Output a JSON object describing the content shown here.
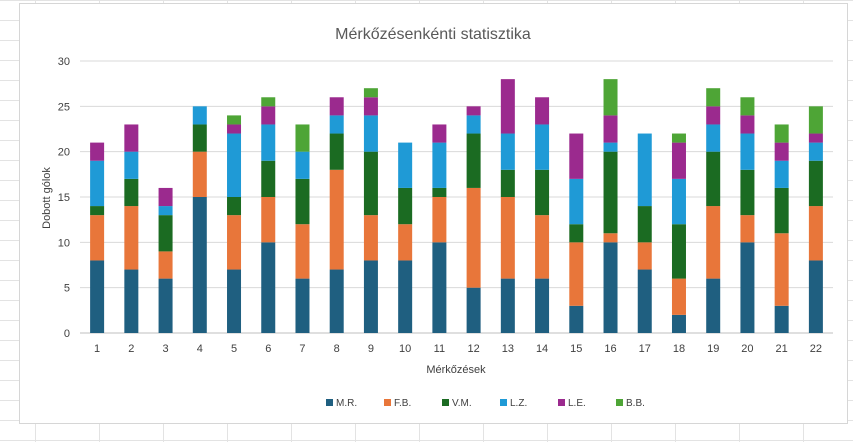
{
  "chart_data": {
    "type": "bar",
    "stacked": true,
    "title": "Mérkőzésenkénti statisztika",
    "xlabel": "Mérkőzések",
    "ylabel": "Dobott gólok",
    "ylim": [
      0,
      30
    ],
    "yticks": [
      0,
      5,
      10,
      15,
      20,
      25,
      30
    ],
    "grid": true,
    "legend_position": "bottom",
    "categories": [
      "1",
      "2",
      "3",
      "4",
      "5",
      "6",
      "7",
      "8",
      "9",
      "10",
      "11",
      "12",
      "13",
      "14",
      "15",
      "16",
      "17",
      "18",
      "19",
      "20",
      "21",
      "22"
    ],
    "series": [
      {
        "name": "M.R.",
        "color": "#1f5f80",
        "values": [
          8,
          7,
          6,
          15,
          7,
          10,
          6,
          7,
          8,
          8,
          10,
          5,
          6,
          6,
          3,
          10,
          7,
          2,
          6,
          10,
          3,
          8
        ]
      },
      {
        "name": "F.B.",
        "color": "#e8763a",
        "values": [
          5,
          7,
          3,
          5,
          6,
          5,
          6,
          11,
          5,
          4,
          5,
          11,
          9,
          7,
          7,
          1,
          3,
          4,
          8,
          3,
          8,
          6
        ]
      },
      {
        "name": "V.M.",
        "color": "#1b6b22",
        "values": [
          1,
          3,
          4,
          3,
          2,
          4,
          5,
          4,
          7,
          4,
          1,
          6,
          3,
          5,
          2,
          9,
          4,
          6,
          6,
          5,
          5,
          5
        ]
      },
      {
        "name": "L.Z.",
        "color": "#1f9ad6",
        "values": [
          5,
          3,
          1,
          2,
          7,
          4,
          3,
          2,
          4,
          5,
          5,
          2,
          4,
          5,
          5,
          1,
          8,
          5,
          3,
          4,
          3,
          2
        ]
      },
      {
        "name": "L.E.",
        "color": "#9b2a8e",
        "values": [
          2,
          3,
          2,
          0,
          1,
          2,
          0,
          2,
          2,
          0,
          2,
          1,
          6,
          3,
          5,
          3,
          0,
          4,
          2,
          2,
          2,
          1
        ]
      },
      {
        "name": "B.B.",
        "color": "#4ea536",
        "values": [
          0,
          0,
          0,
          0,
          1,
          1,
          3,
          0,
          1,
          0,
          0,
          0,
          0,
          0,
          0,
          4,
          0,
          1,
          2,
          2,
          2,
          3
        ]
      }
    ]
  }
}
